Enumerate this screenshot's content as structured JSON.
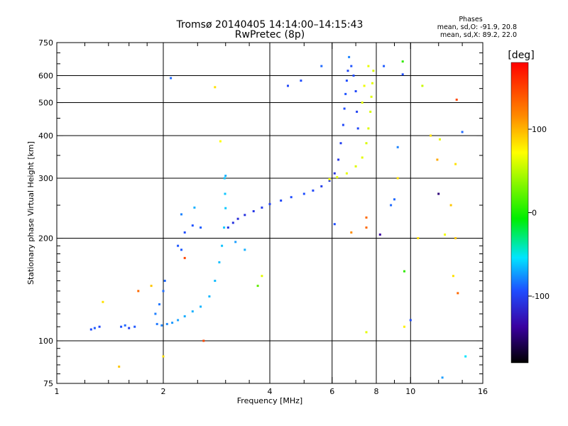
{
  "header": {
    "title": "Tromsø 20140405 14:14:00–14:15:43",
    "subtitle": "RwPretec (8p)"
  },
  "phase_stats": {
    "heading": "Phases",
    "line_o": "mean, sd,O: -91.9, 20.8",
    "line_x": "mean, sd,X: 89.2, 22.0"
  },
  "colorbar": {
    "unit_label": "[deg]",
    "ticks": [
      {
        "value": 100,
        "label": "100"
      },
      {
        "value": 0,
        "label": "0"
      },
      {
        "value": -100,
        "label": "-100"
      }
    ],
    "range": [
      -180,
      180
    ]
  },
  "chart_data": {
    "type": "scatter",
    "title": "Tromsø 20140405 14:14:00–14:15:43",
    "subtitle": "RwPretec (8p)",
    "xlabel": "Frequency [MHz]",
    "ylabel": "Stationary phase Virtual Height [km]",
    "xscale": "log",
    "yscale": "log",
    "xlim": [
      1,
      16
    ],
    "ylim": [
      75,
      750
    ],
    "xticks": [
      {
        "value": 1,
        "label": "1"
      },
      {
        "value": 2,
        "label": "2"
      },
      {
        "value": 4,
        "label": "4"
      },
      {
        "value": 6,
        "label": "6"
      },
      {
        "value": 8,
        "label": "8"
      },
      {
        "value": 10,
        "label": "10"
      },
      {
        "value": 16,
        "label": "16"
      }
    ],
    "yticks": [
      {
        "value": 75,
        "label": "75"
      },
      {
        "value": 100,
        "label": "100"
      },
      {
        "value": 200,
        "label": "200"
      },
      {
        "value": 300,
        "label": "300"
      },
      {
        "value": 400,
        "label": "400"
      },
      {
        "value": 500,
        "label": "500"
      },
      {
        "value": 600,
        "label": "600"
      },
      {
        "value": 750,
        "label": "750"
      }
    ],
    "grid_x": [
      2,
      4,
      6,
      8,
      10
    ],
    "grid_y": [
      100,
      200,
      300,
      400,
      500,
      600
    ],
    "series": [
      {
        "color_by": "phase_deg",
        "points": [
          {
            "x": 1.25,
            "y": 108,
            "phase": -110
          },
          {
            "x": 1.28,
            "y": 109,
            "phase": -105
          },
          {
            "x": 1.32,
            "y": 110,
            "phase": -112
          },
          {
            "x": 1.52,
            "y": 110,
            "phase": -108
          },
          {
            "x": 1.56,
            "y": 111,
            "phase": -100
          },
          {
            "x": 1.6,
            "y": 109,
            "phase": -115
          },
          {
            "x": 1.66,
            "y": 110,
            "phase": -106
          },
          {
            "x": 1.92,
            "y": 112,
            "phase": -95
          },
          {
            "x": 1.98,
            "y": 111,
            "phase": -90
          },
          {
            "x": 2.05,
            "y": 112,
            "phase": -88
          },
          {
            "x": 2.12,
            "y": 113,
            "phase": -82
          },
          {
            "x": 2.2,
            "y": 115,
            "phase": -78
          },
          {
            "x": 2.3,
            "y": 118,
            "phase": -72
          },
          {
            "x": 2.42,
            "y": 122,
            "phase": -70
          },
          {
            "x": 2.55,
            "y": 126,
            "phase": -68
          },
          {
            "x": 2.7,
            "y": 135,
            "phase": -66
          },
          {
            "x": 2.8,
            "y": 150,
            "phase": -64
          },
          {
            "x": 2.88,
            "y": 170,
            "phase": -62
          },
          {
            "x": 2.93,
            "y": 190,
            "phase": -60
          },
          {
            "x": 2.97,
            "y": 215,
            "phase": -58
          },
          {
            "x": 3.0,
            "y": 245,
            "phase": -56
          },
          {
            "x": 2.99,
            "y": 270,
            "phase": -58
          },
          {
            "x": 2.98,
            "y": 300,
            "phase": -60
          },
          {
            "x": 1.9,
            "y": 120,
            "phase": -92
          },
          {
            "x": 1.95,
            "y": 128,
            "phase": -95
          },
          {
            "x": 2.0,
            "y": 140,
            "phase": -98
          },
          {
            "x": 2.02,
            "y": 150,
            "phase": -100
          },
          {
            "x": 2.25,
            "y": 185,
            "phase": -105
          },
          {
            "x": 2.3,
            "y": 208,
            "phase": -110
          },
          {
            "x": 2.42,
            "y": 218,
            "phase": -108
          },
          {
            "x": 2.55,
            "y": 215,
            "phase": -104
          },
          {
            "x": 2.2,
            "y": 190,
            "phase": -106
          },
          {
            "x": 3.05,
            "y": 215,
            "phase": -118
          },
          {
            "x": 3.15,
            "y": 222,
            "phase": -120
          },
          {
            "x": 3.25,
            "y": 228,
            "phase": -122
          },
          {
            "x": 3.4,
            "y": 234,
            "phase": -120
          },
          {
            "x": 3.6,
            "y": 240,
            "phase": -118
          },
          {
            "x": 3.8,
            "y": 246,
            "phase": -116
          },
          {
            "x": 4.0,
            "y": 252,
            "phase": -114
          },
          {
            "x": 4.3,
            "y": 258,
            "phase": -112
          },
          {
            "x": 4.6,
            "y": 264,
            "phase": -110
          },
          {
            "x": 5.0,
            "y": 270,
            "phase": -110
          },
          {
            "x": 5.3,
            "y": 276,
            "phase": -112
          },
          {
            "x": 5.6,
            "y": 284,
            "phase": -116
          },
          {
            "x": 5.9,
            "y": 295,
            "phase": -118
          },
          {
            "x": 6.1,
            "y": 310,
            "phase": -120
          },
          {
            "x": 6.25,
            "y": 340,
            "phase": -118
          },
          {
            "x": 6.35,
            "y": 380,
            "phase": -115
          },
          {
            "x": 6.45,
            "y": 430,
            "phase": -112
          },
          {
            "x": 6.5,
            "y": 480,
            "phase": -110
          },
          {
            "x": 6.55,
            "y": 530,
            "phase": -108
          },
          {
            "x": 6.6,
            "y": 580,
            "phase": -110
          },
          {
            "x": 6.65,
            "y": 620,
            "phase": -112
          },
          {
            "x": 6.9,
            "y": 600,
            "phase": -110
          },
          {
            "x": 7.0,
            "y": 540,
            "phase": -112
          },
          {
            "x": 7.05,
            "y": 470,
            "phase": -114
          },
          {
            "x": 7.1,
            "y": 420,
            "phase": -112
          },
          {
            "x": 6.8,
            "y": 640,
            "phase": -108
          },
          {
            "x": 5.9,
            "y": 298,
            "phase": 95
          },
          {
            "x": 6.2,
            "y": 302,
            "phase": 90
          },
          {
            "x": 6.6,
            "y": 310,
            "phase": 92
          },
          {
            "x": 7.0,
            "y": 325,
            "phase": 88
          },
          {
            "x": 7.3,
            "y": 345,
            "phase": 90
          },
          {
            "x": 7.5,
            "y": 380,
            "phase": 86
          },
          {
            "x": 7.6,
            "y": 420,
            "phase": 88
          },
          {
            "x": 7.7,
            "y": 470,
            "phase": 85
          },
          {
            "x": 7.75,
            "y": 520,
            "phase": 88
          },
          {
            "x": 7.8,
            "y": 570,
            "phase": 90
          },
          {
            "x": 7.85,
            "y": 620,
            "phase": 87
          },
          {
            "x": 7.6,
            "y": 640,
            "phase": 92
          },
          {
            "x": 7.4,
            "y": 560,
            "phase": 94
          },
          {
            "x": 7.3,
            "y": 500,
            "phase": 90
          },
          {
            "x": 9.5,
            "y": 660,
            "phase": 20
          },
          {
            "x": 10.8,
            "y": 560,
            "phase": 80
          },
          {
            "x": 13.5,
            "y": 510,
            "phase": 160
          },
          {
            "x": 12.0,
            "y": 270,
            "phase": -150
          },
          {
            "x": 13.0,
            "y": 250,
            "phase": 120
          },
          {
            "x": 9.0,
            "y": 260,
            "phase": -100
          },
          {
            "x": 7.5,
            "y": 230,
            "phase": 150
          },
          {
            "x": 8.2,
            "y": 205,
            "phase": -140
          },
          {
            "x": 10.5,
            "y": 200,
            "phase": 110
          },
          {
            "x": 12.5,
            "y": 205,
            "phase": 95
          },
          {
            "x": 13.4,
            "y": 200,
            "phase": 120
          },
          {
            "x": 9.6,
            "y": 160,
            "phase": 20
          },
          {
            "x": 13.2,
            "y": 155,
            "phase": 110
          },
          {
            "x": 10.0,
            "y": 115,
            "phase": -110
          },
          {
            "x": 9.6,
            "y": 110,
            "phase": 105
          },
          {
            "x": 7.5,
            "y": 106,
            "phase": 90
          },
          {
            "x": 13.6,
            "y": 138,
            "phase": 150
          },
          {
            "x": 14.3,
            "y": 90,
            "phase": -40
          },
          {
            "x": 12.3,
            "y": 78,
            "phase": -80
          },
          {
            "x": 14.0,
            "y": 410,
            "phase": -100
          },
          {
            "x": 13.4,
            "y": 330,
            "phase": 110
          },
          {
            "x": 11.9,
            "y": 340,
            "phase": 130
          },
          {
            "x": 12.1,
            "y": 390,
            "phase": 90
          },
          {
            "x": 11.4,
            "y": 400,
            "phase": 110
          },
          {
            "x": 9.2,
            "y": 370,
            "phase": -90
          },
          {
            "x": 9.5,
            "y": 605,
            "phase": -110
          },
          {
            "x": 8.4,
            "y": 640,
            "phase": -105
          },
          {
            "x": 6.7,
            "y": 680,
            "phase": -90
          },
          {
            "x": 5.6,
            "y": 640,
            "phase": -100
          },
          {
            "x": 4.9,
            "y": 580,
            "phase": -110
          },
          {
            "x": 4.5,
            "y": 560,
            "phase": -112
          },
          {
            "x": 2.1,
            "y": 590,
            "phase": -100
          },
          {
            "x": 2.8,
            "y": 555,
            "phase": 110
          },
          {
            "x": 2.9,
            "y": 385,
            "phase": 100
          },
          {
            "x": 3.0,
            "y": 305,
            "phase": -70
          },
          {
            "x": 2.3,
            "y": 175,
            "phase": 160
          },
          {
            "x": 3.2,
            "y": 195,
            "phase": -80
          },
          {
            "x": 3.4,
            "y": 185,
            "phase": -70
          },
          {
            "x": 3.7,
            "y": 145,
            "phase": 40
          },
          {
            "x": 3.8,
            "y": 155,
            "phase": 90
          },
          {
            "x": 2.0,
            "y": 90,
            "phase": 110
          },
          {
            "x": 1.85,
            "y": 145,
            "phase": 120
          },
          {
            "x": 1.7,
            "y": 140,
            "phase": 150
          },
          {
            "x": 1.35,
            "y": 130,
            "phase": 110
          },
          {
            "x": 1.5,
            "y": 84,
            "phase": 120
          },
          {
            "x": 2.25,
            "y": 235,
            "phase": -90
          },
          {
            "x": 2.45,
            "y": 246,
            "phase": -70
          },
          {
            "x": 2.6,
            "y": 100,
            "phase": 160
          },
          {
            "x": 6.1,
            "y": 220,
            "phase": -110
          },
          {
            "x": 7.5,
            "y": 215,
            "phase": 150
          },
          {
            "x": 8.8,
            "y": 250,
            "phase": -100
          },
          {
            "x": 9.2,
            "y": 300,
            "phase": 110
          },
          {
            "x": 6.8,
            "y": 208,
            "phase": 140
          }
        ]
      }
    ]
  }
}
